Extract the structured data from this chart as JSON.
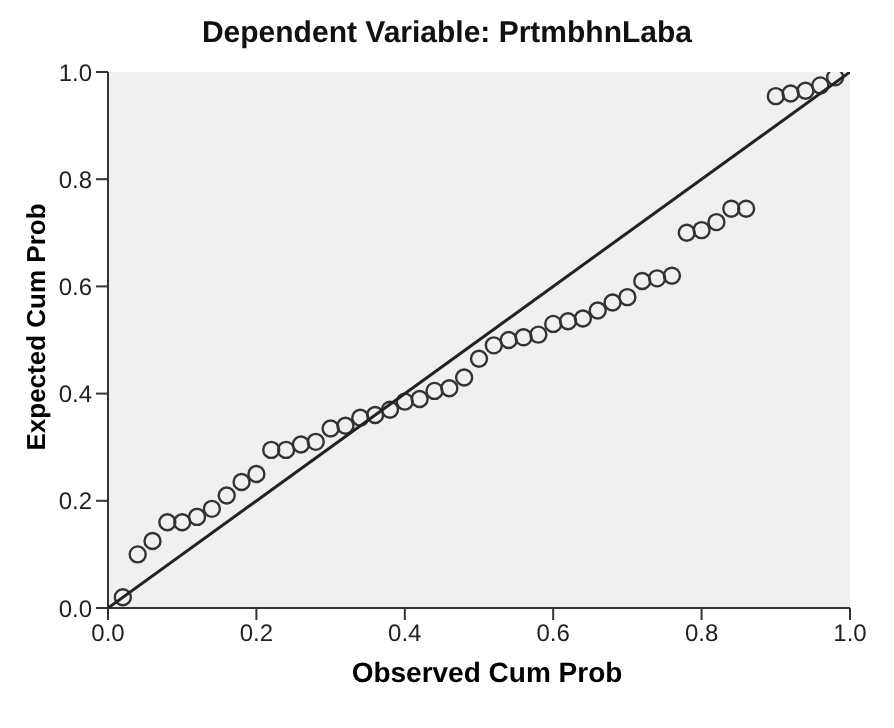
{
  "chart_data": {
    "type": "scatter",
    "title": "Dependent Variable: PrtmbhnLaba",
    "xlabel": "Observed Cum Prob",
    "ylabel": "Expected Cum Prob",
    "xlim": [
      0,
      1
    ],
    "ylim": [
      0,
      1
    ],
    "xticks": [
      {
        "value": 0,
        "label": "0.0"
      },
      {
        "value": 0.2,
        "label": "0.2"
      },
      {
        "value": 0.4,
        "label": "0.4"
      },
      {
        "value": 0.6,
        "label": "0.6"
      },
      {
        "value": 0.8,
        "label": "0.8"
      },
      {
        "value": 1,
        "label": "1.0"
      }
    ],
    "yticks": [
      {
        "value": 0,
        "label": "0.0"
      },
      {
        "value": 0.2,
        "label": "0.2"
      },
      {
        "value": 0.4,
        "label": "0.4"
      },
      {
        "value": 0.6,
        "label": "0.6"
      },
      {
        "value": 0.8,
        "label": "0.8"
      },
      {
        "value": 1,
        "label": "1.0"
      }
    ],
    "grid": false,
    "legend": false,
    "series": [
      {
        "marker": "circle",
        "color": "#333333",
        "x": [
          0.02,
          0.04,
          0.06,
          0.08,
          0.1,
          0.12,
          0.14,
          0.16,
          0.18,
          0.2,
          0.22,
          0.24,
          0.26,
          0.28,
          0.3,
          0.32,
          0.34,
          0.36,
          0.38,
          0.4,
          0.42,
          0.44,
          0.46,
          0.48,
          0.5,
          0.52,
          0.54,
          0.56,
          0.58,
          0.6,
          0.62,
          0.64,
          0.66,
          0.68,
          0.7,
          0.72,
          0.74,
          0.76,
          0.78,
          0.8,
          0.82,
          0.84,
          0.86,
          0.9,
          0.92,
          0.94,
          0.96,
          0.98
        ],
        "values": [
          0.02,
          0.1,
          0.125,
          0.16,
          0.16,
          0.17,
          0.185,
          0.21,
          0.235,
          0.25,
          0.295,
          0.295,
          0.305,
          0.31,
          0.335,
          0.34,
          0.355,
          0.36,
          0.37,
          0.385,
          0.39,
          0.405,
          0.41,
          0.43,
          0.465,
          0.49,
          0.5,
          0.505,
          0.51,
          0.53,
          0.535,
          0.54,
          0.555,
          0.57,
          0.58,
          0.61,
          0.615,
          0.62,
          0.7,
          0.705,
          0.72,
          0.745,
          0.745,
          0.955,
          0.96,
          0.965,
          0.975,
          0.99
        ]
      },
      {
        "type": "line",
        "marker": "none",
        "color": "#222222",
        "x": [
          0,
          1
        ],
        "values": [
          0,
          1
        ]
      }
    ]
  }
}
